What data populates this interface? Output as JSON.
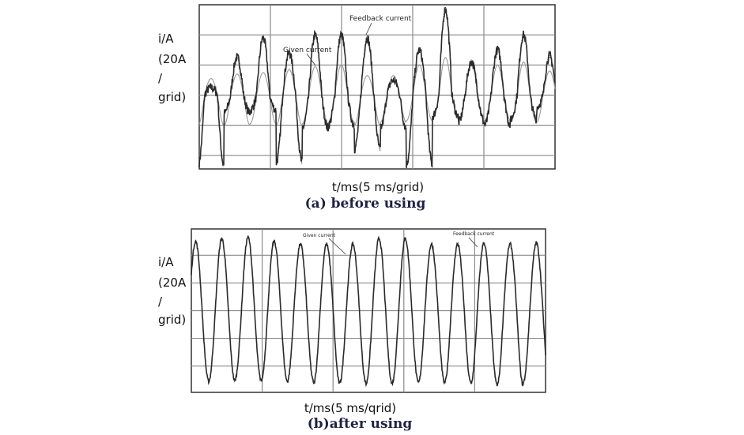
{
  "chart_data": [
    {
      "type": "line",
      "title": "",
      "caption": "(a) before using",
      "ylabel_lines": [
        "i/A",
        "(20A",
        "/",
        "grid)"
      ],
      "xlabel": "t/ms(5 ms/grid)",
      "xlim": [
        0,
        25
      ],
      "ylim": [
        -49,
        60
      ],
      "x_grid_step_ms": 5,
      "y_grid_step_A": 20,
      "grid": true,
      "annotations": [
        "Feedback current",
        "Given current"
      ],
      "period_ms": 1.83,
      "first_peak_ms": 0.83,
      "series": [
        {
          "name": "Given current",
          "color": "#9a9a9a",
          "cycle_peaks_A": [
            11,
            14,
            15,
            17,
            19,
            20,
            13,
            13,
            20,
            25,
            20,
            20,
            22,
            16
          ],
          "cycle_troughs_A": [
            -20,
            -20,
            -19,
            -20,
            -19,
            -18,
            -20,
            -18,
            -17,
            -16,
            -17,
            -17,
            -18,
            -18
          ]
        },
        {
          "name": "Feedback current",
          "color": "#2a2a2a",
          "cycle_peaks_A": [
            5,
            25,
            38,
            28,
            40,
            40,
            38,
            10,
            30,
            57,
            22,
            30,
            40,
            26
          ],
          "cycle_troughs_A": [
            -47,
            -12,
            -10,
            -45,
            -22,
            -20,
            -36,
            -22,
            -46,
            -14,
            -18,
            -20,
            -16,
            -8
          ]
        }
      ]
    },
    {
      "type": "line",
      "title": "",
      "caption": "(b)after using",
      "ylabel_lines": [
        "i/A",
        "(20A",
        "/",
        "grid)"
      ],
      "xlabel": "t/ms(5 ms/qrid)",
      "xlim": [
        0,
        25
      ],
      "ylim": [
        -59,
        59
      ],
      "x_grid_step_ms": 5,
      "y_grid_step_A": 20,
      "grid": true,
      "annotations": [
        "Given current",
        "Feedback current"
      ],
      "period_ms": 1.85,
      "first_peak_ms": 0.3,
      "series": [
        {
          "name": "Feedback current",
          "color": "#2a2a2a",
          "cycle_peaks_A": [
            50,
            52,
            53,
            50,
            48,
            48,
            48,
            52,
            52,
            48,
            48,
            49,
            48,
            49
          ],
          "cycle_troughs_A": [
            -51,
            -51,
            -50,
            -51,
            -51,
            -53,
            -52,
            -53,
            -52,
            -52,
            -52,
            -53,
            -54,
            -52
          ]
        }
      ]
    }
  ]
}
